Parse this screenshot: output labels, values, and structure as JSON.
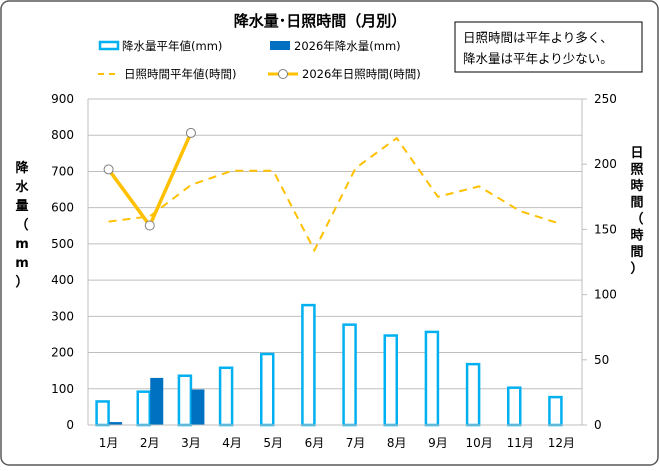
{
  "chart_data": {
    "type": "bar+line",
    "title": "降水量･日照時間（月別）",
    "note_lines": [
      "日照時間は平年より多く、",
      "降水量は平年より少ない。"
    ],
    "categories": [
      "1月",
      "2月",
      "3月",
      "4月",
      "5月",
      "6月",
      "7月",
      "8月",
      "9月",
      "10月",
      "11月",
      "12月"
    ],
    "y_left": {
      "label": "降水量（mm）",
      "label_chars": [
        "降",
        "水",
        "量",
        "（",
        "m",
        "m",
        "）"
      ],
      "range": [
        0,
        900
      ],
      "ticks": [
        "0",
        "100",
        "200",
        "300",
        "400",
        "500",
        "600",
        "700",
        "800",
        "900"
      ]
    },
    "y_right": {
      "label": "日照時間（時間）",
      "label_chars": [
        "日",
        "照",
        "時",
        "間",
        "（",
        "時",
        "間",
        "）"
      ],
      "range": [
        0,
        250
      ],
      "ticks": [
        "0",
        "50",
        "100",
        "150",
        "200",
        "250"
      ]
    },
    "grid": true,
    "legend_position": "top",
    "series": [
      {
        "name": "降水量平年値(mm)",
        "type": "bar",
        "axis": "left",
        "style": "outline",
        "color": "#00b0f0",
        "values": [
          65,
          92,
          136,
          158,
          196,
          331,
          277,
          247,
          257,
          168,
          103,
          77
        ]
      },
      {
        "name": "2026年降水量(mm)",
        "type": "bar",
        "axis": "left",
        "style": "filled",
        "color": "#0070c0",
        "values": [
          8,
          130,
          98,
          null,
          null,
          null,
          null,
          null,
          null,
          null,
          null,
          null
        ]
      },
      {
        "name": "日照時間平年値(時間)",
        "type": "line",
        "axis": "right",
        "style": "dashed",
        "color": "#ffc000",
        "values": [
          156,
          160,
          184,
          195,
          195,
          134,
          197,
          220,
          175,
          183,
          164,
          154
        ]
      },
      {
        "name": "2026年日照時間(時間)",
        "type": "line",
        "axis": "right",
        "style": "solid-markers",
        "color": "#ffc000",
        "values": [
          196,
          153,
          224,
          null,
          null,
          null,
          null,
          null,
          null,
          null,
          null,
          null
        ]
      }
    ]
  }
}
